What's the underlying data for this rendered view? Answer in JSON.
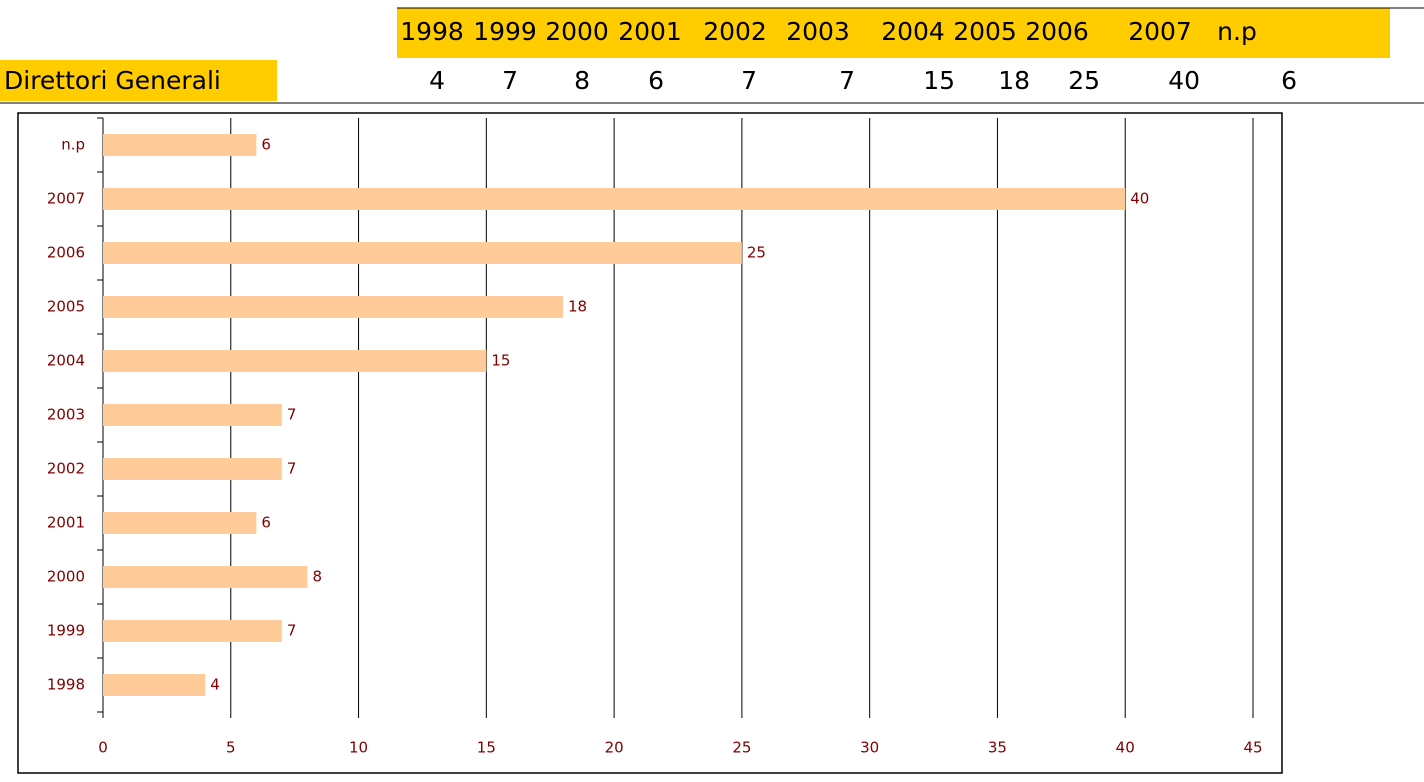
{
  "table": {
    "columns": [
      "1998",
      "1999",
      "2000",
      "2001",
      "2002",
      "2003",
      "2004",
      "2005",
      "2006",
      "2007",
      "n.p"
    ],
    "row_label": "Direttori Generali",
    "row": [
      4,
      7,
      8,
      6,
      7,
      7,
      15,
      18,
      25,
      40,
      6
    ]
  },
  "chart_data": {
    "type": "hbar",
    "categories": [
      "1998",
      "1999",
      "2000",
      "2001",
      "2002",
      "2003",
      "2004",
      "2005",
      "2006",
      "2007",
      "n.p"
    ],
    "values": [
      4,
      7,
      8,
      6,
      7,
      7,
      15,
      18,
      25,
      40,
      6
    ],
    "color": "#ffcc99",
    "xlim": [
      0,
      45
    ],
    "xticks": [
      0,
      5,
      10,
      15,
      20,
      25,
      30,
      35,
      40,
      45
    ],
    "grid": true
  }
}
